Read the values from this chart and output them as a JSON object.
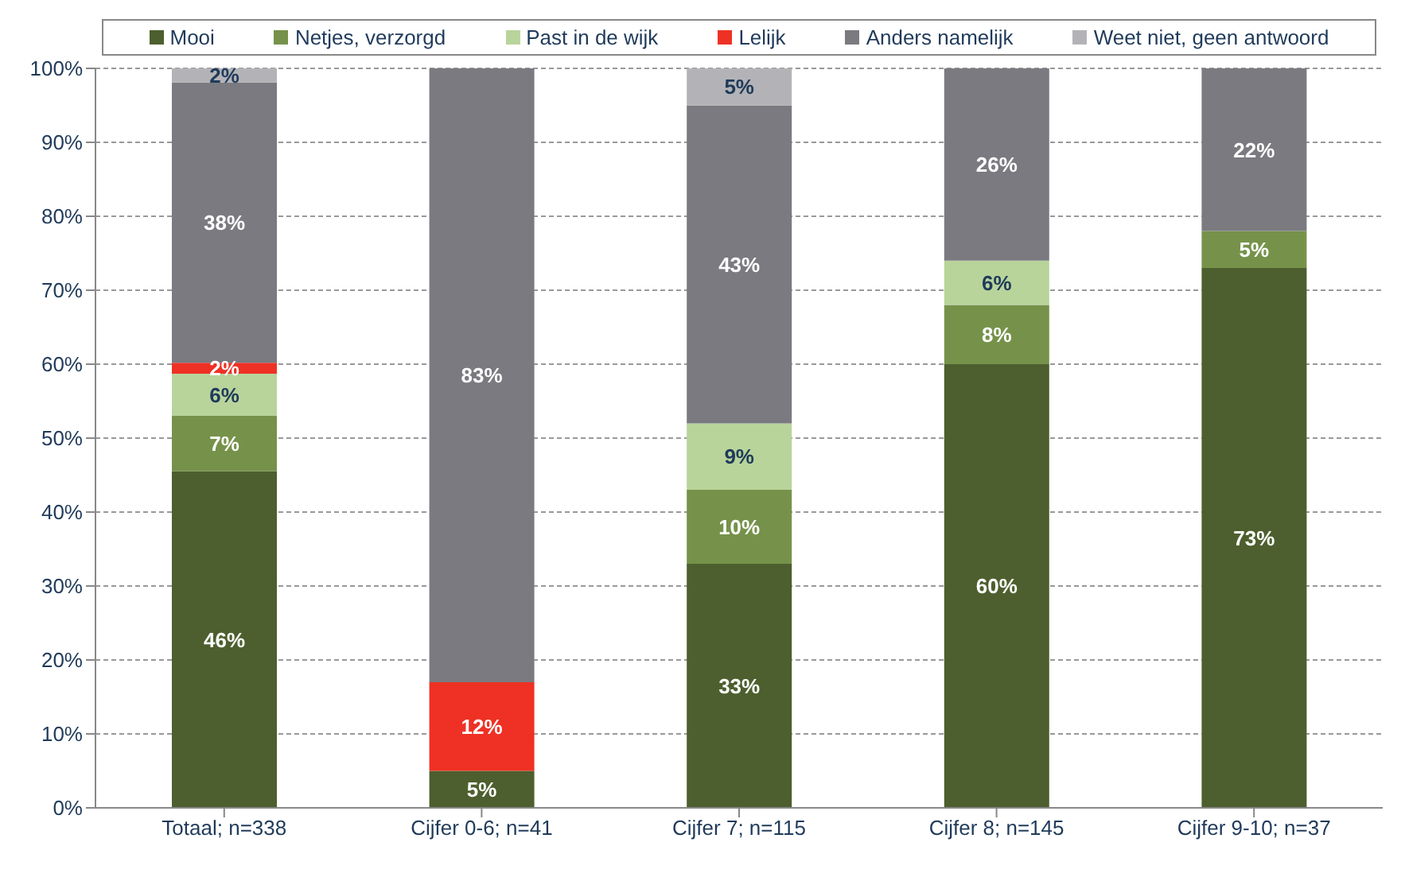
{
  "chart_data": {
    "type": "bar",
    "stacked": true,
    "categories": [
      "Totaal; n=338",
      "Cijfer 0-6; n=41",
      "Cijfer 7; n=115",
      "Cijfer 8; n=145",
      "Cijfer 9-10; n=37"
    ],
    "series": [
      {
        "name": "Mooi",
        "color": "#4d5f2e",
        "values": [
          45.5,
          5,
          33,
          60,
          73
        ],
        "value_labels": [
          "46%",
          "5%",
          "33%",
          "60%",
          "73%"
        ]
      },
      {
        "name": "Netjes, verzorgd",
        "color": "#76924a",
        "values": [
          7.5,
          null,
          10,
          8,
          5
        ],
        "value_labels": [
          "7%",
          null,
          "10%",
          "8%",
          "5%"
        ]
      },
      {
        "name": "Past in de wijk",
        "color": "#b8d49b",
        "values": [
          5.7,
          null,
          9,
          6,
          null
        ],
        "value_labels": [
          "6%",
          null,
          "9%",
          "6%",
          null
        ]
      },
      {
        "name": "Lelijk",
        "color": "#ee3124",
        "values": [
          1.5,
          12,
          null,
          null,
          null
        ],
        "value_labels": [
          "2%",
          "12%",
          null,
          null,
          null
        ]
      },
      {
        "name": "Anders namelijk",
        "color": "#7a7a80",
        "values": [
          37.9,
          83,
          43,
          26,
          22
        ],
        "value_labels": [
          "38%",
          "83%",
          "43%",
          "26%",
          "22%"
        ]
      },
      {
        "name": "Weet niet, geen antwoord",
        "color": "#b3b3b7",
        "values": [
          1.9,
          null,
          5,
          null,
          null
        ],
        "value_labels": [
          "2%",
          null,
          "5%",
          null,
          null
        ]
      }
    ],
    "ylim": [
      0,
      100
    ],
    "yticks": [
      {
        "value": 0,
        "label": "0%"
      },
      {
        "value": 10,
        "label": "10%"
      },
      {
        "value": 20,
        "label": "20%"
      },
      {
        "value": 30,
        "label": "30%"
      },
      {
        "value": 40,
        "label": "40%"
      },
      {
        "value": 50,
        "label": "50%"
      },
      {
        "value": 60,
        "label": "60%"
      },
      {
        "value": 70,
        "label": "70%"
      },
      {
        "value": 80,
        "label": "80%"
      },
      {
        "value": 90,
        "label": "90%"
      },
      {
        "value": 100,
        "label": "100%"
      }
    ],
    "grid": "y",
    "legend": "top"
  }
}
